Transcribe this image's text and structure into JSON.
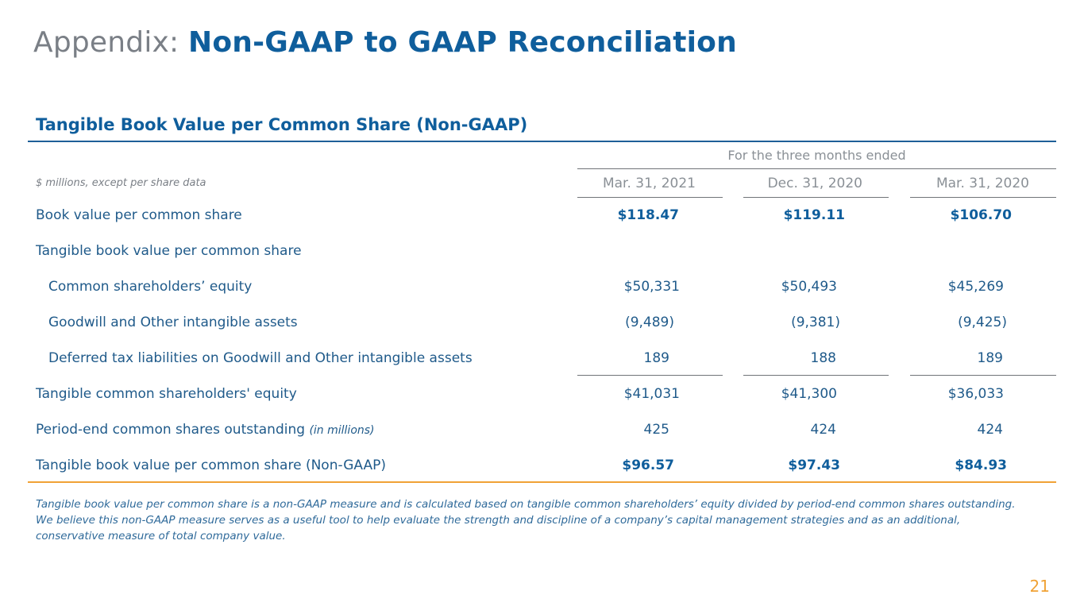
{
  "title": {
    "prefix": "Appendix:",
    "main": "Non-GAAP to GAAP Reconciliation"
  },
  "section_title": "Tangible Book Value per Common Share (Non-GAAP)",
  "period_header": "For the three months ended",
  "units_note": "$ millions, except per share data",
  "columns": [
    "Mar. 31, 2021",
    "Dec. 31, 2020",
    "Mar. 31, 2020"
  ],
  "rows": [
    {
      "label": "Book value per common share",
      "values": [
        "$118.47",
        "$119.11",
        "$106.70"
      ]
    },
    {
      "label": "Tangible book value per common share",
      "values": [
        "",
        "",
        ""
      ]
    },
    {
      "label": "Common shareholders’ equity",
      "values": [
        "$50,331",
        "$50,493",
        "$45,269"
      ]
    },
    {
      "label": "Goodwill and Other intangible assets",
      "values": [
        "(9,489)",
        "(9,381)",
        "(9,425)"
      ]
    },
    {
      "label": "Deferred tax liabilities on Goodwill and Other intangible assets",
      "values": [
        "189",
        "188",
        "189"
      ]
    },
    {
      "label": "Tangible common shareholders' equity",
      "values": [
        "$41,031",
        "$41,300",
        "$36,033"
      ]
    },
    {
      "label": "Period-end common shares outstanding",
      "note": "(in millions)",
      "values": [
        "425",
        "424",
        "424"
      ]
    },
    {
      "label": "Tangible book value per common share (Non-GAAP)",
      "values": [
        "$96.57",
        "$97.43",
        "$84.93"
      ]
    }
  ],
  "footnote": "Tangible book value per common share is a non-GAAP measure and is calculated based on tangible common shareholders’ equity divided by period-end common shares outstanding. We believe this non-GAAP measure serves as a useful tool to help evaluate the strength and discipline of a company’s capital management strategies and as an additional, conservative measure of total company value.",
  "page_number": "21",
  "colors": {
    "brand_blue": "#0f5e9c",
    "accent_orange": "#f0a236",
    "gray_text": "#8a9096"
  }
}
